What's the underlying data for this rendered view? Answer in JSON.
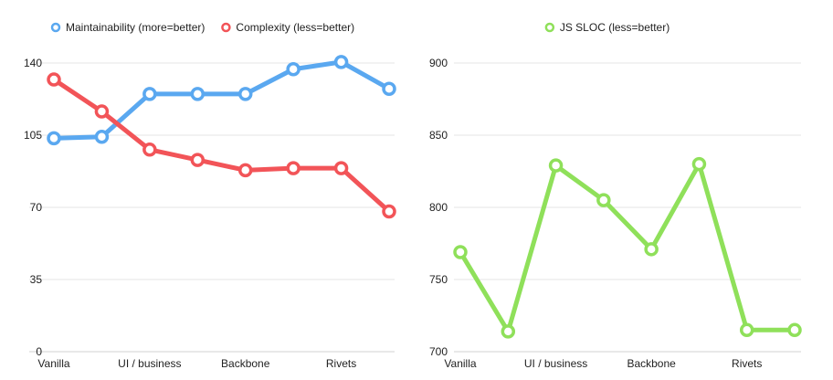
{
  "chart_data": [
    {
      "type": "line",
      "title": "",
      "xlabel": "",
      "ylabel": "",
      "categories": [
        "Vanilla",
        "",
        "UI / business",
        "",
        "Backbone",
        "",
        "Rivets",
        ""
      ],
      "ylim": [
        0,
        140
      ],
      "yticks": [
        "0",
        "35",
        "70",
        "105",
        "140"
      ],
      "grid": true,
      "legend_position": "top",
      "series": [
        {
          "name": "Maintainability (more=better)",
          "color": "#5aa8f0",
          "values": [
            103.5,
            104.2,
            125,
            125,
            125,
            137,
            140.5,
            127.5
          ]
        },
        {
          "name": "Complexity (less=better)",
          "color": "#f25458",
          "values": [
            132,
            116.5,
            98,
            93,
            88,
            89,
            89,
            68
          ]
        }
      ]
    },
    {
      "type": "line",
      "title": "",
      "xlabel": "",
      "ylabel": "",
      "categories": [
        "Vanilla",
        "",
        "UI / business",
        "",
        "Backbone",
        "",
        "Rivets",
        ""
      ],
      "ylim": [
        700,
        900
      ],
      "yticks": [
        "700",
        "750",
        "800",
        "850",
        "900"
      ],
      "grid": true,
      "legend_position": "top",
      "series": [
        {
          "name": "JS SLOC (less=better)",
          "color": "#8fe05a",
          "values": [
            769,
            714,
            829,
            805,
            771,
            830,
            715,
            715
          ]
        }
      ]
    }
  ]
}
